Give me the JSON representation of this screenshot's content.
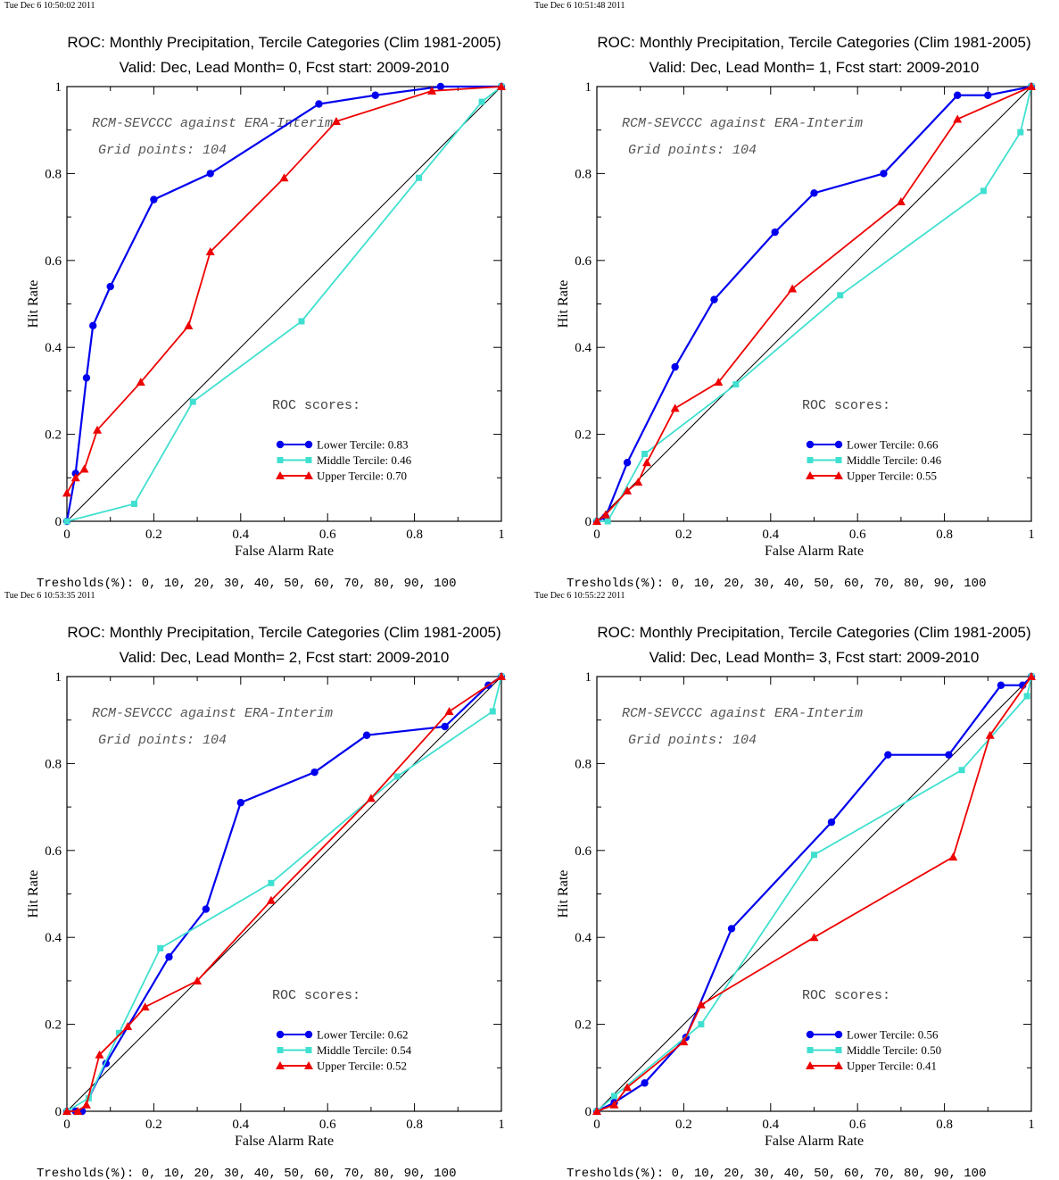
{
  "legend_labels": [
    "Lower Tercile",
    "Middle Tercile",
    "Upper Tercile"
  ],
  "roc_scores_title": "ROC scores:",
  "thresholds_text": "Tresholds(%): 0, 10, 20, 30, 40, 50, 60, 70, 80, 90, 100",
  "colors": {
    "lower": "#0000ee",
    "middle": "#40e0d0",
    "upper": "#ee0000",
    "diagonal": "#000000"
  },
  "chart_data": [
    {
      "type": "line",
      "timestamp": "Tue Dec  6 10:50:02 2011",
      "title": "ROC: Monthly Precipitation, Tercile Categories (Clim 1981-2005)",
      "subtitle": "Valid: Dec, Lead Month= 0, Fcst start: 2009-2010",
      "annotation_1": "RCM-SEVCCC against ERA-Interim",
      "annotation_2": "Grid points:  104",
      "xlabel": "False Alarm Rate",
      "ylabel": "Hit Rate",
      "xlim": [
        0,
        1
      ],
      "ylim": [
        0,
        1
      ],
      "ticks": [
        "0",
        "0.2",
        "0.4",
        "0.6",
        "0.8",
        "1"
      ],
      "diagonal": true,
      "series": [
        {
          "name": "Lower Tercile",
          "score": "0.83",
          "marker": "circle",
          "x": [
            0,
            0.02,
            0.045,
            0.06,
            0.1,
            0.2,
            0.33,
            0.58,
            0.71,
            0.86,
            1.0
          ],
          "y": [
            0,
            0.11,
            0.33,
            0.45,
            0.54,
            0.74,
            0.8,
            0.96,
            0.98,
            1.0,
            1.0
          ]
        },
        {
          "name": "Middle Tercile",
          "score": "0.46",
          "marker": "square",
          "x": [
            0,
            0.155,
            0.29,
            0.54,
            0.81,
            0.955,
            1.0
          ],
          "y": [
            0,
            0.04,
            0.275,
            0.46,
            0.79,
            0.965,
            1.0
          ]
        },
        {
          "name": "Upper Tercile",
          "score": "0.70",
          "marker": "triangle",
          "x": [
            0,
            0.02,
            0.04,
            0.07,
            0.17,
            0.28,
            0.33,
            0.5,
            0.62,
            0.84,
            1.0
          ],
          "y": [
            0.065,
            0.1,
            0.12,
            0.21,
            0.32,
            0.45,
            0.62,
            0.79,
            0.92,
            0.99,
            1.0
          ]
        }
      ]
    },
    {
      "type": "line",
      "timestamp": "Tue Dec  6 10:51:48 2011",
      "title": "ROC: Monthly Precipitation, Tercile Categories (Clim 1981-2005)",
      "subtitle": "Valid: Dec, Lead Month= 1, Fcst start: 2009-2010",
      "annotation_1": "RCM-SEVCCC against ERA-Interim",
      "annotation_2": "Grid points:  104",
      "xlabel": "False Alarm Rate",
      "ylabel": "Hit Rate",
      "xlim": [
        0,
        1
      ],
      "ylim": [
        0,
        1
      ],
      "ticks": [
        "0",
        "0.2",
        "0.4",
        "0.6",
        "0.8",
        "1"
      ],
      "diagonal": true,
      "series": [
        {
          "name": "Lower Tercile",
          "score": "0.66",
          "marker": "circle",
          "x": [
            0,
            0.02,
            0.07,
            0.18,
            0.27,
            0.41,
            0.5,
            0.66,
            0.83,
            0.9,
            1.0
          ],
          "y": [
            0,
            0.01,
            0.135,
            0.355,
            0.51,
            0.665,
            0.755,
            0.8,
            0.98,
            0.98,
            1.0
          ]
        },
        {
          "name": "Middle Tercile",
          "score": "0.46",
          "marker": "square",
          "x": [
            0,
            0.025,
            0.11,
            0.32,
            0.56,
            0.89,
            0.975,
            1.0
          ],
          "y": [
            0,
            0.0,
            0.155,
            0.315,
            0.52,
            0.76,
            0.895,
            1.0
          ]
        },
        {
          "name": "Upper Tercile",
          "score": "0.55",
          "marker": "triangle",
          "x": [
            0,
            0.02,
            0.07,
            0.095,
            0.115,
            0.18,
            0.28,
            0.45,
            0.7,
            0.83,
            1.0
          ],
          "y": [
            0,
            0.015,
            0.07,
            0.09,
            0.135,
            0.26,
            0.32,
            0.535,
            0.735,
            0.925,
            1.0
          ]
        }
      ]
    },
    {
      "type": "line",
      "timestamp": "Tue Dec  6 10:53:35 2011",
      "title": "ROC: Monthly Precipitation, Tercile Categories (Clim 1981-2005)",
      "subtitle": "Valid: Dec, Lead Month= 2, Fcst start: 2009-2010",
      "annotation_1": "RCM-SEVCCC against ERA-Interim",
      "annotation_2": "Grid points:  104",
      "xlabel": "False Alarm Rate",
      "ylabel": "Hit Rate",
      "xlim": [
        0,
        1
      ],
      "ylim": [
        0,
        1
      ],
      "ticks": [
        "0",
        "0.2",
        "0.4",
        "0.6",
        "0.8",
        "1"
      ],
      "diagonal": true,
      "series": [
        {
          "name": "Lower Tercile",
          "score": "0.62",
          "marker": "circle",
          "x": [
            0,
            0.02,
            0.035,
            0.09,
            0.235,
            0.32,
            0.4,
            0.57,
            0.69,
            0.87,
            0.97,
            1.0
          ],
          "y": [
            0,
            0,
            0,
            0.11,
            0.355,
            0.465,
            0.71,
            0.78,
            0.865,
            0.885,
            0.98,
            1.0
          ]
        },
        {
          "name": "Middle Tercile",
          "score": "0.54",
          "marker": "square",
          "x": [
            0,
            0.05,
            0.12,
            0.215,
            0.47,
            0.76,
            0.98,
            1.0
          ],
          "y": [
            0,
            0.03,
            0.18,
            0.375,
            0.525,
            0.77,
            0.92,
            1.0
          ]
        },
        {
          "name": "Upper Tercile",
          "score": "0.52",
          "marker": "triangle",
          "x": [
            0,
            0.025,
            0.045,
            0.075,
            0.14,
            0.18,
            0.3,
            0.47,
            0.7,
            0.88,
            1.0
          ],
          "y": [
            0,
            0,
            0.015,
            0.13,
            0.195,
            0.24,
            0.3,
            0.485,
            0.72,
            0.92,
            1.0
          ]
        }
      ]
    },
    {
      "type": "line",
      "timestamp": "Tue Dec  6 10:55:22 2011",
      "title": "ROC: Monthly Precipitation, Tercile Categories (Clim 1981-2005)",
      "subtitle": "Valid: Dec, Lead Month= 3, Fcst start: 2009-2010",
      "annotation_1": "RCM-SEVCCC against ERA-Interim",
      "annotation_2": "Grid points:  104",
      "xlabel": "False Alarm Rate",
      "ylabel": "Hit Rate",
      "xlim": [
        0,
        1
      ],
      "ylim": [
        0,
        1
      ],
      "ticks": [
        "0",
        "0.2",
        "0.4",
        "0.6",
        "0.8",
        "1"
      ],
      "diagonal": true,
      "series": [
        {
          "name": "Lower Tercile",
          "score": "0.56",
          "marker": "circle",
          "x": [
            0,
            0.04,
            0.11,
            0.205,
            0.31,
            0.54,
            0.67,
            0.81,
            0.93,
            0.98,
            1.0
          ],
          "y": [
            0,
            0.02,
            0.065,
            0.17,
            0.42,
            0.665,
            0.82,
            0.82,
            0.98,
            0.98,
            1.0
          ]
        },
        {
          "name": "Middle Tercile",
          "score": "0.50",
          "marker": "square",
          "x": [
            0,
            0.04,
            0.24,
            0.5,
            0.84,
            0.99,
            1.0
          ],
          "y": [
            0,
            0.035,
            0.2,
            0.59,
            0.785,
            0.955,
            1.0
          ]
        },
        {
          "name": "Upper Tercile",
          "score": "0.41",
          "marker": "triangle",
          "x": [
            0,
            0.04,
            0.07,
            0.2,
            0.24,
            0.5,
            0.82,
            0.905,
            1.0
          ],
          "y": [
            0,
            0.015,
            0.055,
            0.16,
            0.245,
            0.4,
            0.585,
            0.865,
            1.0
          ]
        }
      ]
    }
  ]
}
